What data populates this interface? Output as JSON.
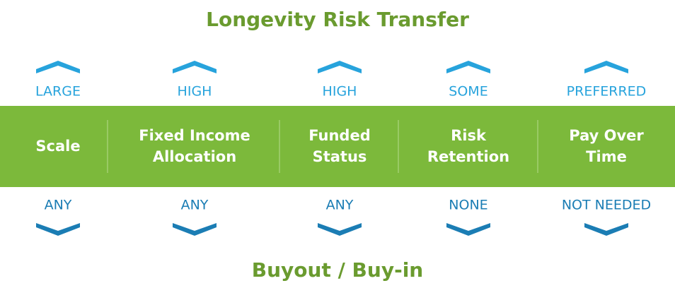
{
  "title": "Longevity Risk Transfer",
  "bottom_title": "Buyout / Buy-in",
  "columns": [
    {
      "label": [
        "Scale"
      ],
      "top": "LARGE",
      "bottom": "ANY"
    },
    {
      "label": [
        "Fixed Income",
        "Allocation"
      ],
      "top": "HIGH",
      "bottom": "ANY"
    },
    {
      "label": [
        "Funded",
        "Status"
      ],
      "top": "HIGH",
      "bottom": "ANY"
    },
    {
      "label": [
        "Risk",
        "Retention"
      ],
      "top": "SOME",
      "bottom": "NONE"
    },
    {
      "label": [
        "Pay Over",
        "Time"
      ],
      "top": "PREFERRED",
      "bottom": "NOT NEEDED"
    }
  ]
}
